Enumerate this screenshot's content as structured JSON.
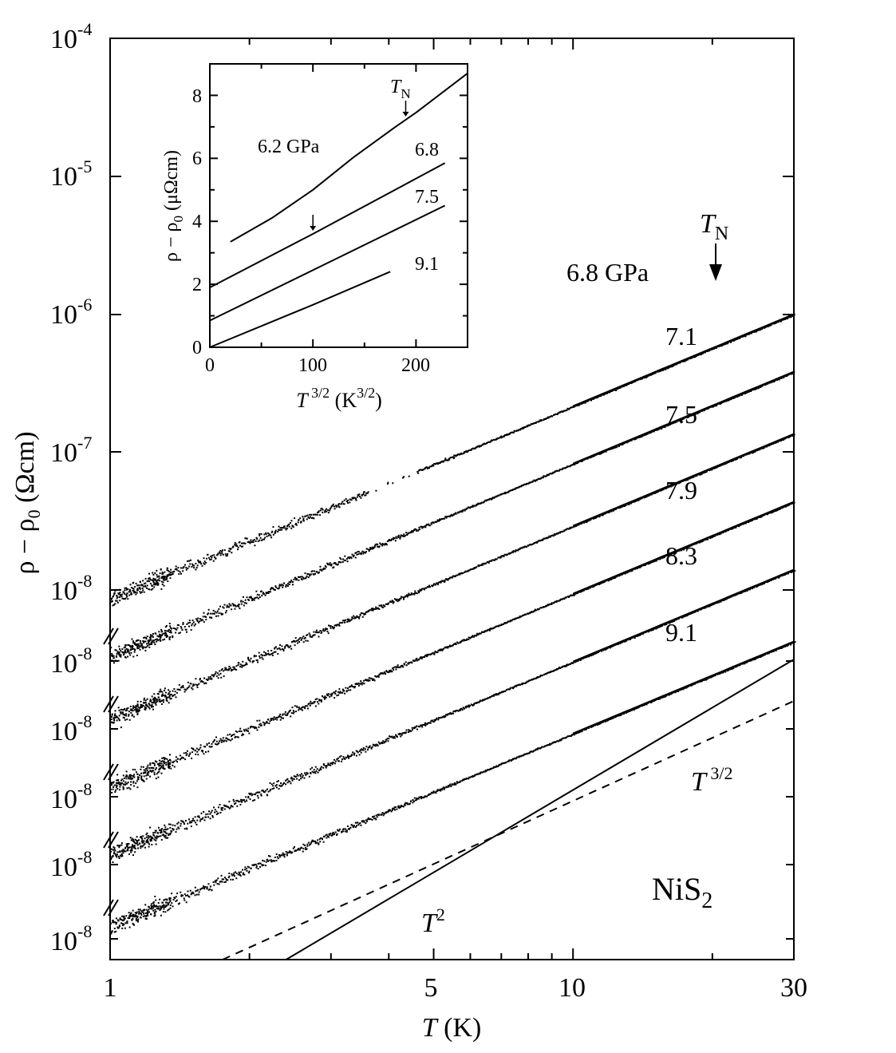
{
  "chart_data": [
    {
      "type": "scatter",
      "xscale": "log",
      "yscale": "log",
      "xlabel": "T (K)",
      "ylabel": "ρ − ρ0 (Ωcm)",
      "xlim": [
        1,
        30
      ],
      "ylim": [
        1e-08,
        0.0001
      ],
      "x_ticks": [
        "1",
        "5",
        "10",
        "30"
      ],
      "y_ticks": [
        "10-4",
        "10-5",
        "10-6",
        "10-7",
        "10-8"
      ],
      "y_break_labels": [
        "10-8",
        "10-8",
        "10-8",
        "10-8",
        "10-8"
      ],
      "annotations": {
        "material": "NiS2",
        "neel_label": "TN",
        "neel_temperature_K": 21,
        "t2_label": "T2",
        "t32_label": "T3/2"
      },
      "series": [
        {
          "name": "6.8 GPa",
          "pressure_GPa": 6.8,
          "exponent": 1.5,
          "x": [
            1.0,
            3.5,
            10.0,
            21.0,
            30.0
          ],
          "y_rel": [
            1.0,
            6.5,
            31,
            94,
            160
          ]
        },
        {
          "name": "7.1",
          "pressure_GPa": 7.1,
          "exponent": 1.5,
          "x": [
            1.0,
            3.5,
            10.0,
            30.0
          ],
          "y_rel": [
            1.0,
            6.5,
            31,
            160
          ]
        },
        {
          "name": "7.5",
          "pressure_GPa": 7.5,
          "exponent": 1.5,
          "x": [
            1.0,
            3.5,
            10.0,
            30.0
          ],
          "y_rel": [
            1.0,
            6.5,
            31,
            160
          ]
        },
        {
          "name": "7.9",
          "pressure_GPa": 7.9,
          "exponent": 1.5,
          "x": [
            1.0,
            3.5,
            10.0,
            30.0
          ],
          "y_rel": [
            1.0,
            6.5,
            31,
            160
          ]
        },
        {
          "name": "8.3",
          "pressure_GPa": 8.3,
          "exponent": 1.5,
          "x": [
            1.0,
            3.5,
            10.0,
            30.0
          ],
          "y_rel": [
            1.0,
            6.5,
            31,
            160
          ]
        },
        {
          "name": "9.1",
          "pressure_GPa": 9.1,
          "exponent": 1.5,
          "x": [
            1.0,
            3.5,
            10.0,
            30.0
          ],
          "y_rel": [
            1.0,
            6.5,
            31,
            160
          ]
        }
      ],
      "reference_lines": [
        {
          "name": "T2",
          "style": "solid",
          "x": [
            1.6,
            30
          ],
          "y_decade_offset": [
            0,
            2.54
          ]
        },
        {
          "name": "T3/2",
          "style": "dashed",
          "x": [
            1.6,
            30
          ],
          "y_decade_offset": [
            0,
            1.91
          ]
        }
      ]
    },
    {
      "type": "line",
      "inset": true,
      "xlabel": "T3/2 (K3/2)",
      "ylabel": "ρ − ρ0 (μΩcm)",
      "xlim": [
        0,
        250
      ],
      "ylim": [
        0,
        9
      ],
      "x_ticks": [
        0,
        100,
        200
      ],
      "y_ticks": [
        0,
        2,
        4,
        6,
        8
      ],
      "annotations": {
        "neel_label": "TN"
      },
      "series": [
        {
          "name": "6.2 GPa",
          "x": [
            20,
            60,
            100,
            140,
            180,
            200,
            250
          ],
          "y": [
            3.35,
            4.1,
            5.0,
            6.05,
            7.0,
            7.45,
            8.7
          ],
          "arrow_at": 190
        },
        {
          "name": "6.8",
          "x": [
            0,
            100,
            228
          ],
          "y": [
            1.9,
            3.6,
            5.85
          ],
          "arrow_at": 100
        },
        {
          "name": "7.5",
          "x": [
            0,
            100,
            228
          ],
          "y": [
            0.85,
            2.45,
            4.5
          ]
        },
        {
          "name": "9.1",
          "x": [
            0,
            100,
            175
          ],
          "y": [
            0.0,
            1.35,
            2.4
          ]
        }
      ]
    }
  ]
}
